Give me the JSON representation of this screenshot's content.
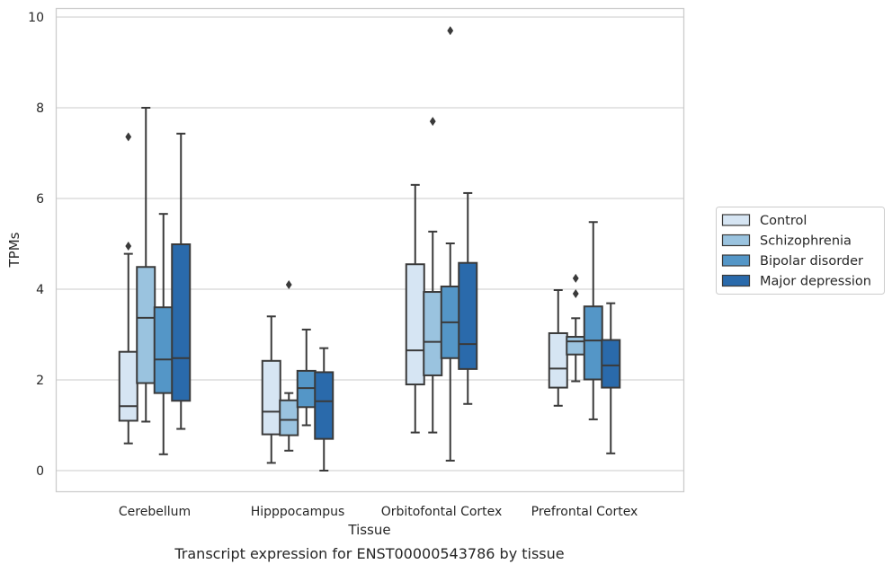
{
  "chart_data": {
    "type": "boxplot",
    "title": "",
    "caption": "Transcript expression for ENST00000543786 by tissue",
    "xlabel": "Tissue",
    "ylabel": "TPMs",
    "ylim": [
      -0.45,
      10.2
    ],
    "yticks": [
      0,
      2,
      4,
      6,
      8,
      10
    ],
    "grid": "horizontal",
    "legend_position": "right",
    "categories": [
      "Cerebellum",
      "Hipppocampus",
      "Orbitofontal Cortex",
      "Prefrontal Cortex"
    ],
    "series": [
      {
        "name": "Control",
        "color": "#d6e5f3",
        "boxes": [
          {
            "whisker_low": 0.6,
            "q1": 1.1,
            "median": 1.42,
            "q3": 2.62,
            "whisker_high": 4.78,
            "outliers": [
              4.95,
              7.36
            ]
          },
          {
            "whisker_low": 0.17,
            "q1": 0.8,
            "median": 1.3,
            "q3": 2.42,
            "whisker_high": 3.4,
            "outliers": []
          },
          {
            "whisker_low": 0.84,
            "q1": 1.9,
            "median": 2.65,
            "q3": 4.55,
            "whisker_high": 6.3,
            "outliers": []
          },
          {
            "whisker_low": 1.43,
            "q1": 1.83,
            "median": 2.25,
            "q3": 3.03,
            "whisker_high": 3.98,
            "outliers": []
          }
        ]
      },
      {
        "name": "Schizophrenia",
        "color": "#9ac3df",
        "boxes": [
          {
            "whisker_low": 1.08,
            "q1": 1.93,
            "median": 3.37,
            "q3": 4.49,
            "whisker_high": 8.0,
            "outliers": []
          },
          {
            "whisker_low": 0.44,
            "q1": 0.78,
            "median": 1.12,
            "q3": 1.55,
            "whisker_high": 1.71,
            "outliers": [
              4.1
            ]
          },
          {
            "whisker_low": 0.84,
            "q1": 2.1,
            "median": 2.84,
            "q3": 3.94,
            "whisker_high": 5.27,
            "outliers": [
              7.7
            ]
          },
          {
            "whisker_low": 1.97,
            "q1": 2.56,
            "median": 2.85,
            "q3": 2.95,
            "whisker_high": 3.36,
            "outliers": [
              3.9,
              4.24
            ]
          }
        ]
      },
      {
        "name": "Bipolar disorder",
        "color": "#5496c7",
        "boxes": [
          {
            "whisker_low": 0.36,
            "q1": 1.71,
            "median": 2.45,
            "q3": 3.6,
            "whisker_high": 5.66,
            "outliers": []
          },
          {
            "whisker_low": 1.0,
            "q1": 1.4,
            "median": 1.82,
            "q3": 2.2,
            "whisker_high": 3.11,
            "outliers": []
          },
          {
            "whisker_low": 0.22,
            "q1": 2.48,
            "median": 3.27,
            "q3": 4.06,
            "whisker_high": 5.01,
            "outliers": [
              9.7
            ]
          },
          {
            "whisker_low": 1.13,
            "q1": 2.01,
            "median": 2.87,
            "q3": 3.62,
            "whisker_high": 5.48,
            "outliers": []
          }
        ]
      },
      {
        "name": "Major depression",
        "color": "#2a6aab",
        "boxes": [
          {
            "whisker_low": 0.92,
            "q1": 1.54,
            "median": 2.48,
            "q3": 4.99,
            "whisker_high": 7.43,
            "outliers": []
          },
          {
            "whisker_low": 0.0,
            "q1": 0.7,
            "median": 1.53,
            "q3": 2.17,
            "whisker_high": 2.7,
            "outliers": []
          },
          {
            "whisker_low": 1.47,
            "q1": 2.24,
            "median": 2.79,
            "q3": 4.58,
            "whisker_high": 6.12,
            "outliers": []
          },
          {
            "whisker_low": 0.38,
            "q1": 1.83,
            "median": 2.32,
            "q3": 2.88,
            "whisker_high": 3.69,
            "outliers": []
          }
        ]
      }
    ]
  }
}
